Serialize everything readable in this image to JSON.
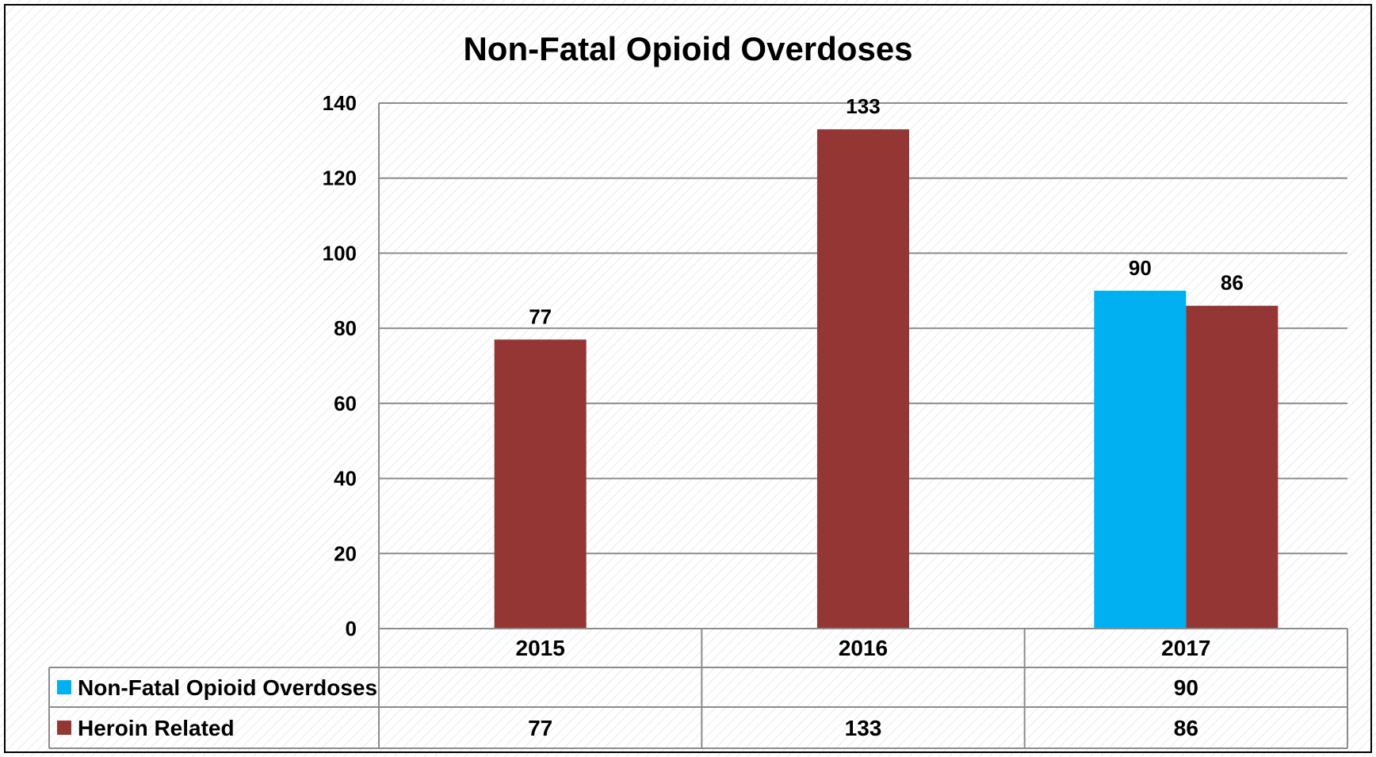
{
  "chart_data": {
    "type": "bar",
    "title": "Non-Fatal Opioid Overdoses",
    "categories": [
      "2015",
      "2016",
      "2017"
    ],
    "ylim": [
      0,
      140
    ],
    "yticks": [
      0,
      20,
      40,
      60,
      80,
      100,
      120,
      140
    ],
    "grid": true,
    "legend": "data-table",
    "series": [
      {
        "name": "Non-Fatal Opioid Overdoses",
        "color": "#00b0f0",
        "values": [
          null,
          null,
          90
        ],
        "labels": [
          "",
          "",
          "90"
        ]
      },
      {
        "name": "Heroin Related",
        "color": "#943634",
        "values": [
          77,
          133,
          86
        ],
        "labels": [
          "77",
          "133",
          "86"
        ]
      }
    ]
  }
}
